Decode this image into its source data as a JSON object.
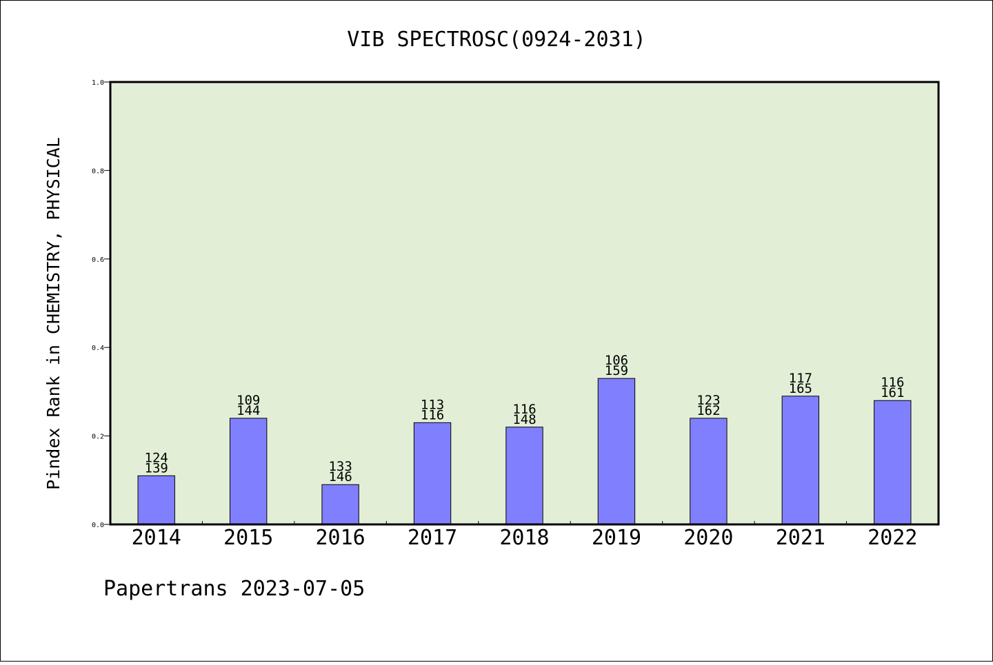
{
  "chart_data": {
    "type": "bar",
    "title": "VIB SPECTROSC(0924-2031)",
    "ylabel": "Pindex Rank in CHEMISTRY, PHYSICAL",
    "xlabel": "",
    "categories": [
      "2014",
      "2015",
      "2016",
      "2017",
      "2018",
      "2019",
      "2020",
      "2021",
      "2022"
    ],
    "values": [
      0.11,
      0.24,
      0.09,
      0.23,
      0.22,
      0.33,
      0.24,
      0.29,
      0.28
    ],
    "labels_top": [
      "124",
      "109",
      "133",
      "113",
      "116",
      "106",
      "123",
      "117",
      "116"
    ],
    "labels_bottom": [
      "139",
      "144",
      "146",
      "116",
      "148",
      "159",
      "162",
      "165",
      "161"
    ],
    "ylim": [
      0,
      1.0
    ],
    "yticks": [
      "0.0",
      "0.2",
      "0.4",
      "0.6",
      "0.8",
      "1.0"
    ],
    "grid": false,
    "colors": {
      "plot_background": "#e2efd6",
      "bar_fill": "#8080ff",
      "bar_stroke": "#000000"
    }
  },
  "footer": {
    "credit": "Papertrans 2023-07-05"
  }
}
